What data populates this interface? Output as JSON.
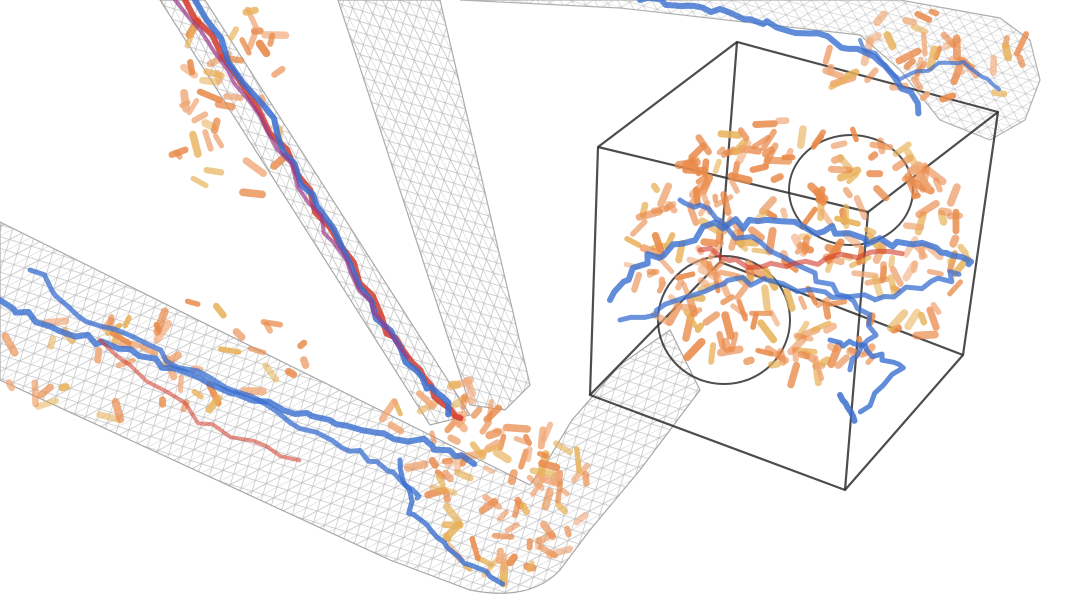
{
  "scene": {
    "background": "#ffffff",
    "colors": {
      "mesh": "#b4b4b4",
      "mesh_edge": "#9a9a9a",
      "box": "#2e2e2e",
      "fiber_blue": "#3a6fd0",
      "fiber_red": "#d23a2a",
      "fiber_purple": "#9a3a8a",
      "rod_orange": "#e98a4a",
      "rod_peach": "#f0a877",
      "rod_gold": "#e8b25a"
    },
    "structures": [
      "mesh-tube",
      "mesh-tube",
      "mesh-tube",
      "mesh-tube",
      "wireframe-box",
      "ring-loop",
      "ring-loop"
    ]
  }
}
